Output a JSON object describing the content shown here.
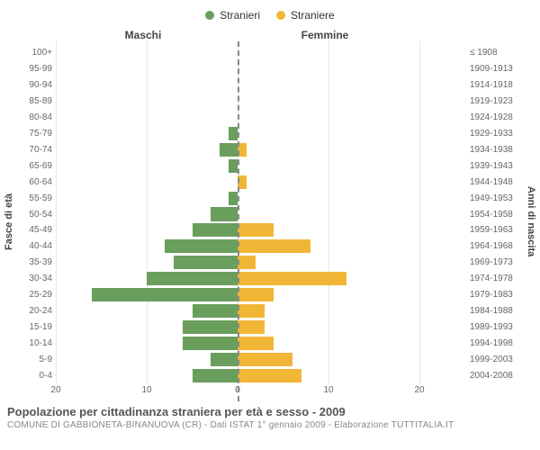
{
  "legend": {
    "male": {
      "label": "Stranieri",
      "color": "#6a9e5d"
    },
    "female": {
      "label": "Straniere",
      "color": "#f2b636"
    }
  },
  "headers": {
    "left": "Maschi",
    "right": "Femmine"
  },
  "axis_titles": {
    "left": "Fasce di età",
    "right": "Anni di nascita"
  },
  "age_bands": [
    "100+",
    "95-99",
    "90-94",
    "85-89",
    "80-84",
    "75-79",
    "70-74",
    "65-69",
    "60-64",
    "55-59",
    "50-54",
    "45-49",
    "40-44",
    "35-39",
    "30-34",
    "25-29",
    "20-24",
    "15-19",
    "10-14",
    "5-9",
    "0-4"
  ],
  "birth_bands": [
    "≤ 1908",
    "1909-1913",
    "1914-1918",
    "1919-1923",
    "1924-1928",
    "1929-1933",
    "1934-1938",
    "1939-1943",
    "1944-1948",
    "1949-1953",
    "1954-1958",
    "1959-1963",
    "1964-1968",
    "1969-1973",
    "1974-1978",
    "1979-1983",
    "1984-1988",
    "1989-1993",
    "1994-1998",
    "1999-2003",
    "2004-2008"
  ],
  "male_values": [
    0,
    0,
    0,
    0,
    0,
    1,
    2,
    1,
    0,
    1,
    3,
    5,
    8,
    7,
    10,
    16,
    5,
    6,
    6,
    3,
    5
  ],
  "female_values": [
    0,
    0,
    0,
    0,
    0,
    0,
    1,
    0,
    1,
    0,
    0,
    4,
    8,
    2,
    12,
    4,
    3,
    3,
    4,
    6,
    7
  ],
  "x": {
    "max": 20,
    "ticks_left": [
      20,
      10,
      0
    ],
    "ticks_right": [
      0,
      10,
      20
    ]
  },
  "caption": {
    "title": "Popolazione per cittadinanza straniera per età e sesso - 2009",
    "subtitle": "COMUNE DI GABBIONETA-BINANUOVA (CR) - Dati ISTAT 1° gennaio 2009 - Elaborazione TUTTITALIA.IT"
  },
  "layout": {
    "ylabel_w": 20,
    "yaxis_w": 38,
    "yaxis_right_w": 58,
    "panel_left_w": 202,
    "panel_right_w": 202,
    "grid_color": "#e6e6e6",
    "background": "#ffffff"
  }
}
